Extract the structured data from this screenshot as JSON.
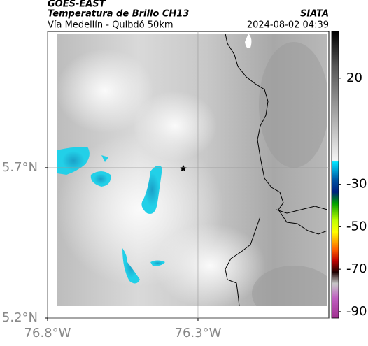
{
  "header": {
    "source": "GOES-EAST",
    "title": "Temperatura de Brillo CH13",
    "agency": "SIATA",
    "subtitle": "Vía Medellín - Quibdó 50km",
    "datetime": "2024-08-02 04:39"
  },
  "map": {
    "xlim": [
      -76.8,
      -75.865
    ],
    "ylim": [
      5.2,
      6.153
    ],
    "xticks": [
      {
        "value": -76.8,
        "label": "76.8°W"
      },
      {
        "value": -76.3,
        "label": "76.3°W"
      }
    ],
    "yticks": [
      {
        "value": 5.2,
        "label": "5.2°N"
      },
      {
        "value": 5.7,
        "label": "5.7°N"
      }
    ],
    "grid": true
  },
  "colorbar": {
    "lim": [
      -93,
      42
    ],
    "ticks": [
      20,
      -30,
      -50,
      -70,
      -90
    ]
  }
}
